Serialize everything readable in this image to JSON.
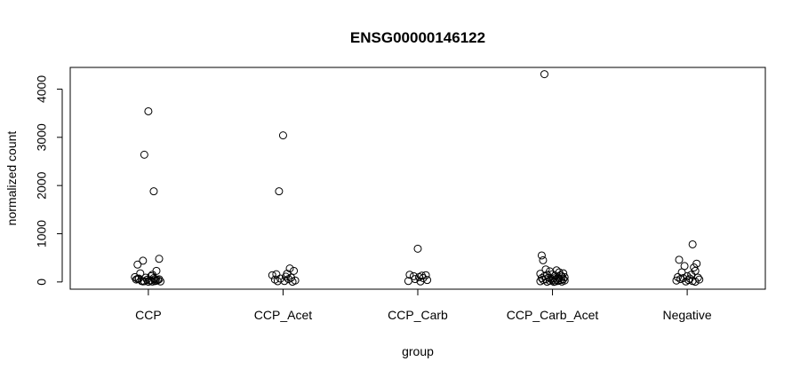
{
  "chart_data": {
    "type": "scatter",
    "title": "ENSG00000146122",
    "xlabel": "group",
    "ylabel": "normalized count",
    "categories": [
      "CCP",
      "CCP_Acet",
      "CCP_Carb",
      "CCP_Carb_Acet",
      "Negative"
    ],
    "y_ticks": [
      0,
      1000,
      2000,
      3000,
      4000
    ],
    "ylim": [
      -150,
      4450
    ],
    "grid": false,
    "legend": "none",
    "series": [
      {
        "category": "CCP",
        "x": [
          0.0,
          -0.03,
          0.04,
          -0.08,
          -0.04,
          0.08,
          0.06,
          -0.1,
          0.02,
          -0.06,
          0.03,
          -0.02,
          0.05,
          -0.07,
          0.07,
          0.01,
          -0.05,
          0.09,
          -0.09,
          0.04,
          0.0,
          -0.03,
          0.06,
          0.02,
          -0.01,
          0.08,
          -0.08,
          0.03,
          -0.04,
          0.05
        ],
        "y": [
          3540,
          2640,
          1880,
          360,
          440,
          480,
          230,
          100,
          120,
          180,
          150,
          90,
          60,
          70,
          40,
          30,
          20,
          10,
          50,
          80,
          5,
          15,
          25,
          35,
          45,
          55,
          65,
          8,
          12,
          18
        ]
      },
      {
        "category": "CCP_Acet",
        "x": [
          0.0,
          -0.03,
          0.05,
          -0.05,
          0.03,
          0.08,
          -0.08,
          0.02,
          0.06,
          -0.02,
          0.04,
          -0.06,
          0.09,
          0.01,
          -0.04,
          0.07
        ],
        "y": [
          3040,
          1880,
          280,
          160,
          170,
          230,
          140,
          110,
          90,
          70,
          60,
          50,
          30,
          20,
          15,
          5
        ]
      },
      {
        "category": "CCP_Carb",
        "x": [
          0.0,
          -0.06,
          0.03,
          0.06,
          -0.03,
          0.01,
          0.04,
          -0.02,
          0.07,
          -0.07,
          0.02
        ],
        "y": [
          690,
          150,
          130,
          140,
          120,
          100,
          80,
          60,
          40,
          20,
          10
        ]
      },
      {
        "category": "CCP_Carb_Acet",
        "x": [
          -0.06,
          -0.08,
          -0.07,
          -0.05,
          0.03,
          -0.02,
          0.05,
          0.08,
          -0.09,
          0.0,
          -0.04,
          0.06,
          0.02,
          -0.06,
          0.07,
          0.09,
          -0.03,
          0.04,
          -0.08,
          0.01,
          0.05,
          -0.01,
          0.08,
          -0.05,
          0.03,
          -0.07,
          0.06,
          0.0,
          0.09,
          -0.02,
          0.04,
          -0.09,
          0.02,
          0.07,
          -0.04,
          0.01
        ],
        "y": [
          4310,
          550,
          450,
          260,
          240,
          220,
          200,
          180,
          170,
          160,
          150,
          140,
          130,
          120,
          110,
          100,
          90,
          85,
          80,
          75,
          70,
          65,
          60,
          55,
          50,
          45,
          40,
          35,
          30,
          25,
          20,
          15,
          10,
          8,
          5,
          2
        ]
      },
      {
        "category": "Negative",
        "x": [
          0.04,
          -0.06,
          0.07,
          -0.02,
          0.05,
          0.06,
          -0.04,
          0.03,
          0.0,
          -0.07,
          0.08,
          -0.03,
          0.02,
          -0.05,
          0.09,
          0.01,
          -0.08,
          0.04,
          -0.01,
          0.06
        ],
        "y": [
          780,
          460,
          380,
          330,
          300,
          230,
          200,
          150,
          120,
          100,
          90,
          80,
          70,
          60,
          50,
          40,
          30,
          20,
          10,
          5
        ]
      }
    ]
  }
}
